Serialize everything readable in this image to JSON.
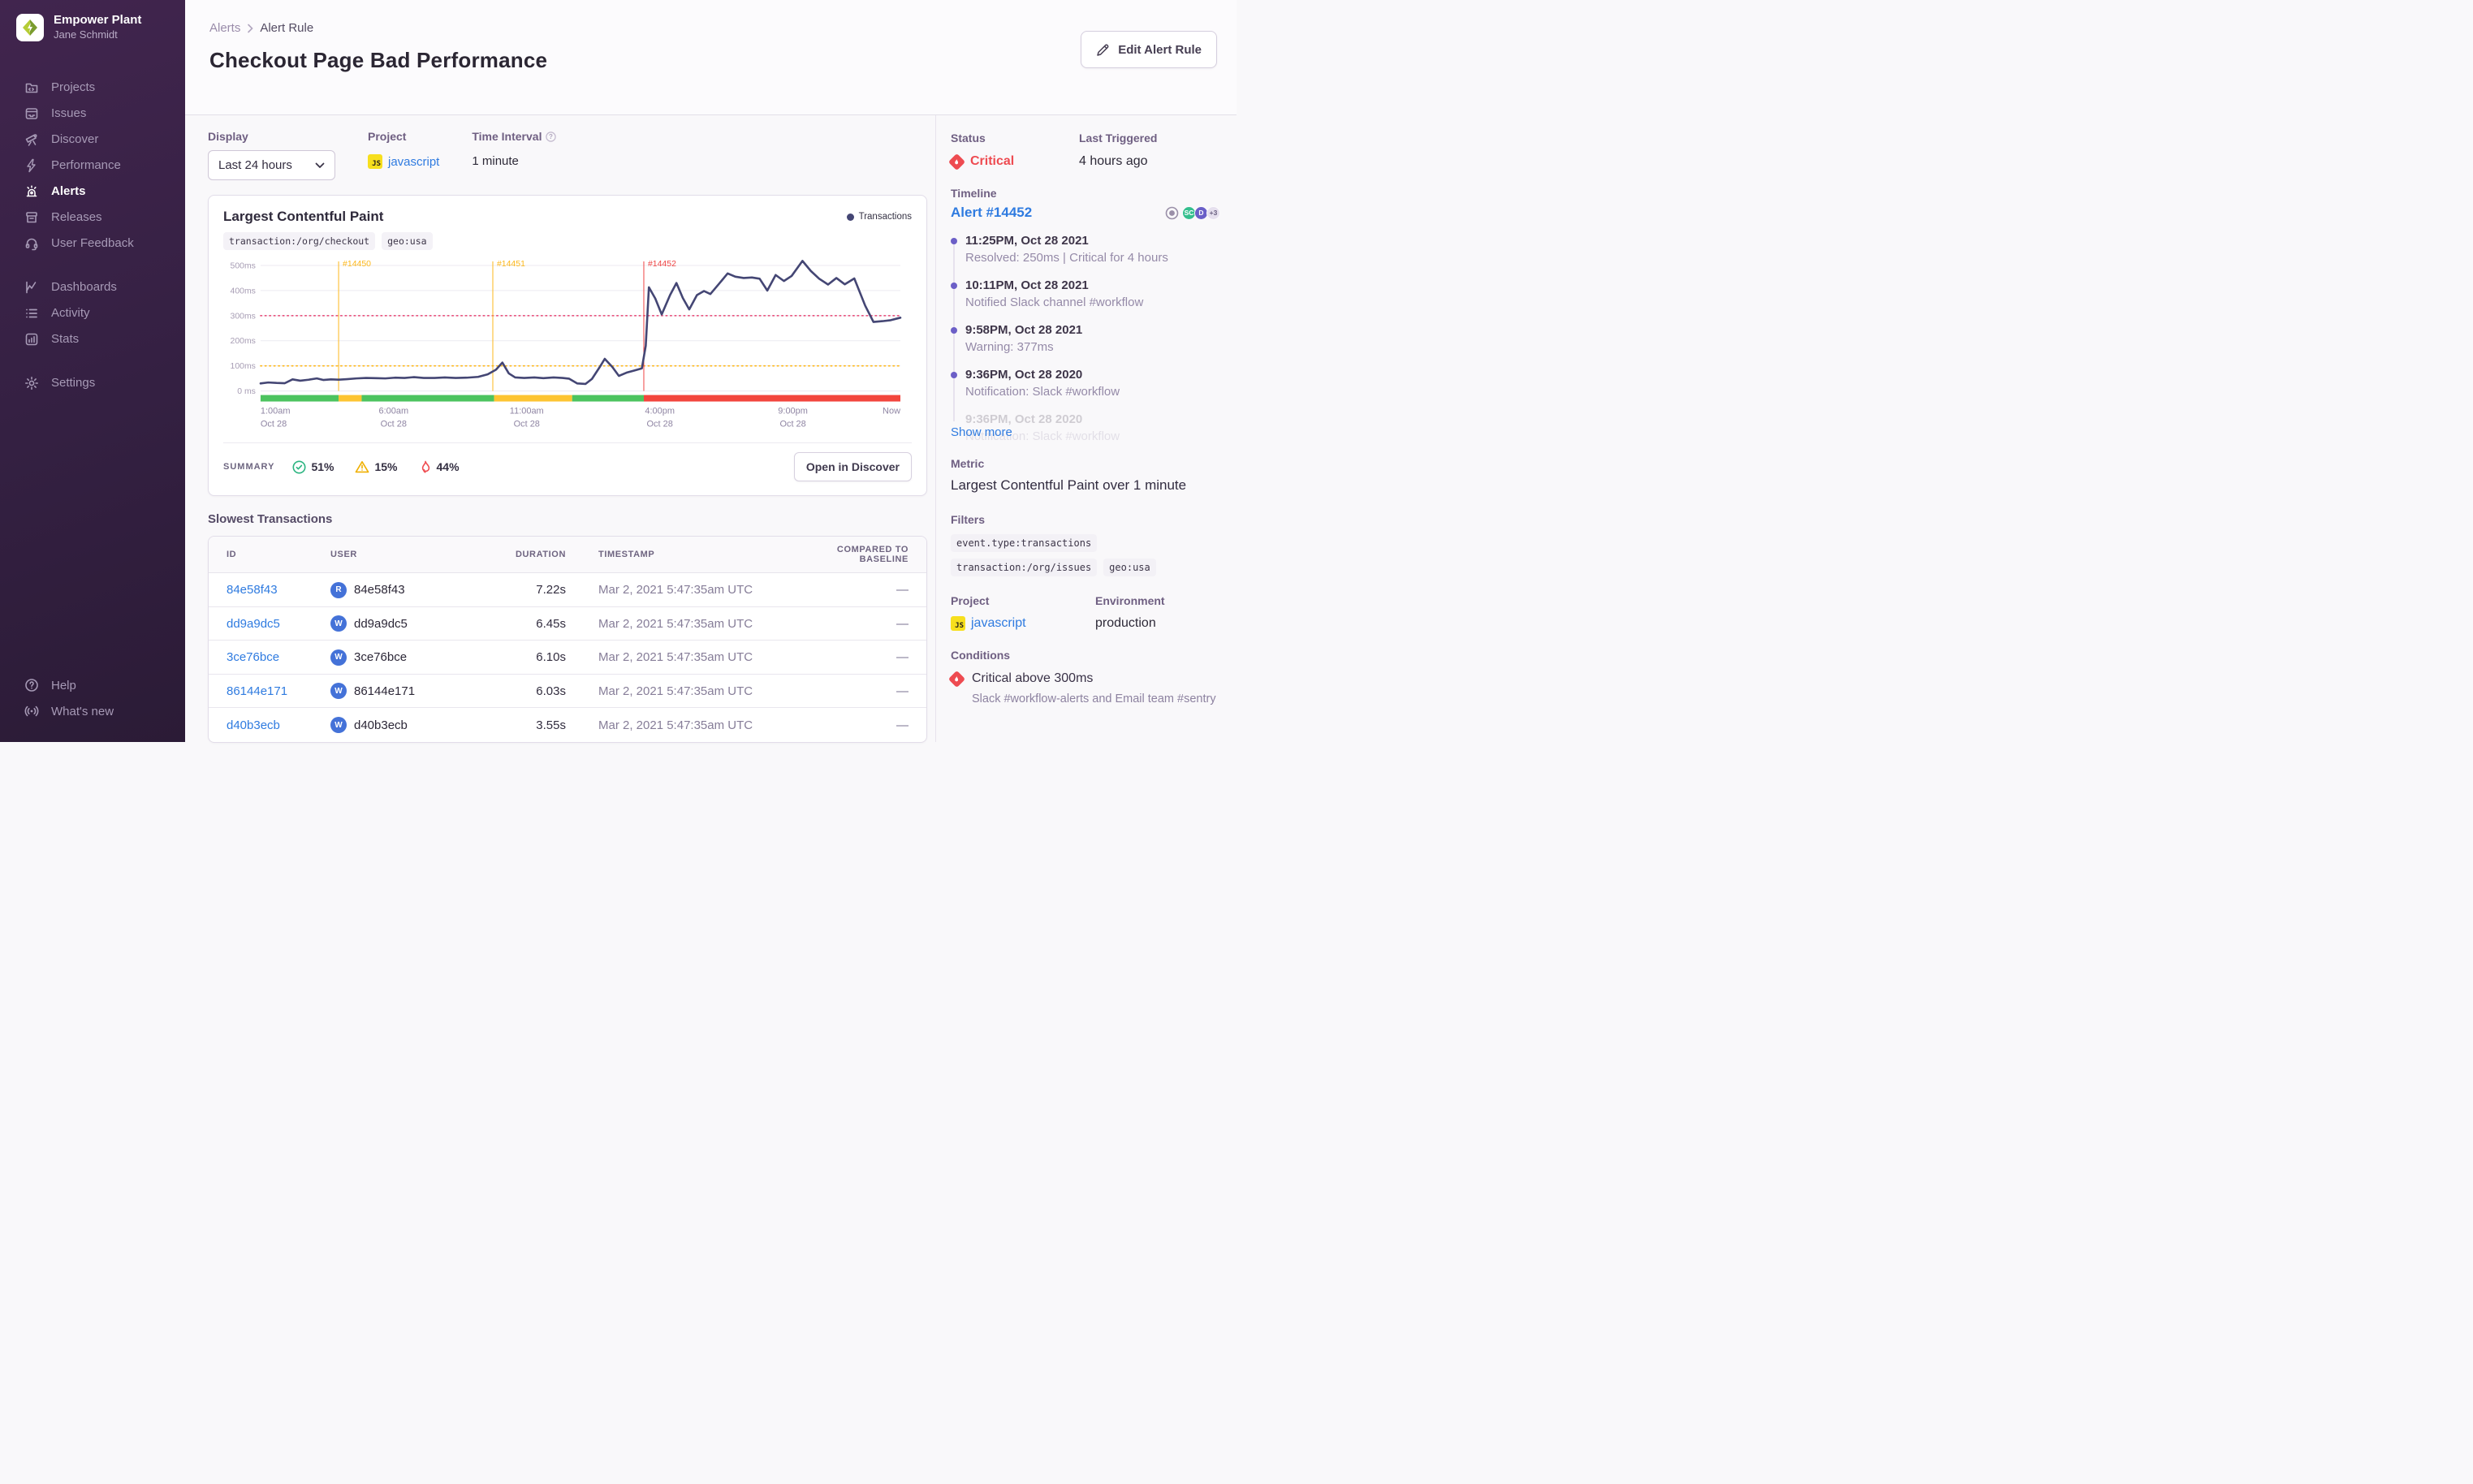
{
  "sidebar": {
    "org_name": "Empower Plant",
    "user_name": "Jane Schmidt",
    "nav_main": [
      {
        "label": "Projects"
      },
      {
        "label": "Issues"
      },
      {
        "label": "Discover"
      },
      {
        "label": "Performance"
      },
      {
        "label": "Alerts"
      },
      {
        "label": "Releases"
      },
      {
        "label": "User Feedback"
      }
    ],
    "nav_secondary": [
      {
        "label": "Dashboards"
      },
      {
        "label": "Activity"
      },
      {
        "label": "Stats"
      }
    ],
    "nav_settings": [
      {
        "label": "Settings"
      }
    ],
    "nav_bottom": [
      {
        "label": "Help"
      },
      {
        "label": "What's new"
      }
    ]
  },
  "header": {
    "breadcrumb_root": "Alerts",
    "breadcrumb_current": "Alert Rule",
    "title": "Checkout Page Bad Performance",
    "edit_button": "Edit Alert Rule"
  },
  "controls": {
    "display_label": "Display",
    "display_value": "Last 24 hours",
    "project_label": "Project",
    "project_value": "javascript",
    "interval_label": "Time Interval",
    "interval_value": "1 minute"
  },
  "status_panel": {
    "status_label": "Status",
    "status_value": "Critical",
    "last_triggered_label": "Last Triggered",
    "last_triggered_value": "4 hours ago"
  },
  "chart": {
    "title": "Largest Contentful Paint",
    "tags": [
      {
        "text": "transaction:/org/checkout"
      },
      {
        "text": "geo:usa"
      }
    ],
    "legend": "Transactions",
    "summary_label": "SUMMARY",
    "summary": [
      {
        "icon": "check",
        "value": "51%"
      },
      {
        "icon": "warning",
        "value": "15%"
      },
      {
        "icon": "fire",
        "value": "44%"
      }
    ],
    "open_button": "Open in Discover"
  },
  "chart_data": {
    "type": "line",
    "title": "Largest Contentful Paint",
    "unit": "ms",
    "ylim": [
      0,
      540
    ],
    "grid": true,
    "legend_position": "top-right",
    "y_ticks": [
      {
        "value": 0,
        "label": "0 ms"
      },
      {
        "value": 100,
        "label": "100ms"
      },
      {
        "value": 200,
        "label": "200ms"
      },
      {
        "value": 300,
        "label": "300ms"
      },
      {
        "value": 400,
        "label": "400ms"
      },
      {
        "value": 500,
        "label": "500ms"
      }
    ],
    "x_ticks": [
      {
        "pos": 0.0,
        "label": "1:00am",
        "sublabel": "Oct 28"
      },
      {
        "pos": 0.208,
        "label": "6:00am",
        "sublabel": "Oct 28"
      },
      {
        "pos": 0.416,
        "label": "11:00am",
        "sublabel": "Oct 28"
      },
      {
        "pos": 0.624,
        "label": "4:00pm",
        "sublabel": "Oct 28"
      },
      {
        "pos": 0.832,
        "label": "9:00pm",
        "sublabel": "Oct 28"
      },
      {
        "pos": 1.0,
        "label": "Now",
        "sublabel": ""
      }
    ],
    "thresholds": [
      {
        "name": "critical",
        "value": 300,
        "color": "#e8537d"
      },
      {
        "name": "warning",
        "value": 100,
        "color": "#fdb81b"
      }
    ],
    "incidents": [
      {
        "id": "#14450",
        "pos": 0.122,
        "color": "#fdb81b"
      },
      {
        "id": "#14451",
        "pos": 0.363,
        "color": "#fdb81b"
      },
      {
        "id": "#14452",
        "pos": 0.599,
        "color": "#ef4444"
      }
    ],
    "series": [
      {
        "name": "Transactions",
        "color": "#444674",
        "points": [
          [
            0.0,
            30
          ],
          [
            0.012,
            34
          ],
          [
            0.025,
            32
          ],
          [
            0.038,
            31
          ],
          [
            0.05,
            46
          ],
          [
            0.062,
            41
          ],
          [
            0.075,
            45
          ],
          [
            0.088,
            50
          ],
          [
            0.098,
            44
          ],
          [
            0.11,
            46
          ],
          [
            0.122,
            45
          ],
          [
            0.135,
            47
          ],
          [
            0.15,
            50
          ],
          [
            0.165,
            52
          ],
          [
            0.18,
            51
          ],
          [
            0.195,
            50
          ],
          [
            0.21,
            53
          ],
          [
            0.225,
            52
          ],
          [
            0.24,
            55
          ],
          [
            0.255,
            52
          ],
          [
            0.272,
            52
          ],
          [
            0.288,
            54
          ],
          [
            0.305,
            52
          ],
          [
            0.322,
            53
          ],
          [
            0.34,
            56
          ],
          [
            0.355,
            66
          ],
          [
            0.368,
            85
          ],
          [
            0.378,
            113
          ],
          [
            0.388,
            70
          ],
          [
            0.398,
            54
          ],
          [
            0.412,
            52
          ],
          [
            0.428,
            54
          ],
          [
            0.442,
            51
          ],
          [
            0.458,
            54
          ],
          [
            0.472,
            52
          ],
          [
            0.482,
            49
          ],
          [
            0.495,
            30
          ],
          [
            0.508,
            28
          ],
          [
            0.518,
            48
          ],
          [
            0.53,
            95
          ],
          [
            0.538,
            128
          ],
          [
            0.55,
            95
          ],
          [
            0.56,
            60
          ],
          [
            0.572,
            73
          ],
          [
            0.585,
            82
          ],
          [
            0.596,
            90
          ],
          [
            0.602,
            180
          ],
          [
            0.607,
            413
          ],
          [
            0.617,
            368
          ],
          [
            0.627,
            305
          ],
          [
            0.64,
            382
          ],
          [
            0.65,
            430
          ],
          [
            0.66,
            370
          ],
          [
            0.67,
            325
          ],
          [
            0.682,
            382
          ],
          [
            0.693,
            398
          ],
          [
            0.703,
            386
          ],
          [
            0.717,
            428
          ],
          [
            0.73,
            468
          ],
          [
            0.742,
            455
          ],
          [
            0.755,
            450
          ],
          [
            0.768,
            452
          ],
          [
            0.78,
            447
          ],
          [
            0.792,
            400
          ],
          [
            0.805,
            462
          ],
          [
            0.818,
            438
          ],
          [
            0.83,
            458
          ],
          [
            0.847,
            518
          ],
          [
            0.86,
            478
          ],
          [
            0.873,
            447
          ],
          [
            0.887,
            424
          ],
          [
            0.9,
            450
          ],
          [
            0.913,
            425
          ],
          [
            0.928,
            448
          ],
          [
            0.945,
            340
          ],
          [
            0.958,
            275
          ],
          [
            0.972,
            278
          ],
          [
            0.985,
            282
          ],
          [
            1.0,
            292
          ]
        ]
      }
    ],
    "status_segments": [
      {
        "from": 0.0,
        "to": 0.122,
        "color": "#4cc35f"
      },
      {
        "from": 0.122,
        "to": 0.158,
        "color": "#fdc432"
      },
      {
        "from": 0.158,
        "to": 0.365,
        "color": "#4cc35f"
      },
      {
        "from": 0.365,
        "to": 0.487,
        "color": "#fdc432"
      },
      {
        "from": 0.487,
        "to": 0.599,
        "color": "#4cc35f"
      },
      {
        "from": 0.599,
        "to": 1.0,
        "color": "#f2453d"
      }
    ]
  },
  "table": {
    "heading": "Slowest Transactions",
    "columns": [
      "ID",
      "USER",
      "DURATION",
      "TIMESTAMP",
      "COMPARED TO BASELINE"
    ],
    "rows": [
      {
        "id": "84e58f43",
        "avatar": "R",
        "user": "84e58f43",
        "duration": "7.22s",
        "timestamp": "Mar 2, 2021 5:47:35am UTC",
        "baseline": "—"
      },
      {
        "id": "dd9a9dc5",
        "avatar": "W",
        "user": "dd9a9dc5",
        "duration": "6.45s",
        "timestamp": "Mar 2, 2021 5:47:35am UTC",
        "baseline": "—"
      },
      {
        "id": "3ce76bce",
        "avatar": "W",
        "user": "3ce76bce",
        "duration": "6.10s",
        "timestamp": "Mar 2, 2021 5:47:35am UTC",
        "baseline": "—"
      },
      {
        "id": "86144e171",
        "avatar": "W",
        "user": "86144e171",
        "duration": "6.03s",
        "timestamp": "Mar 2, 2021 5:47:35am UTC",
        "baseline": "—"
      },
      {
        "id": "d40b3ecb",
        "avatar": "W",
        "user": "d40b3ecb",
        "duration": "3.55s",
        "timestamp": "Mar 2, 2021 5:47:35am UTC",
        "baseline": "—"
      }
    ]
  },
  "timeline": {
    "label": "Timeline",
    "alert_link": "Alert #14452",
    "avatars": [
      {
        "initials": "SC",
        "color": "#35bf8e"
      },
      {
        "initials": "D",
        "color": "#6a5fc8"
      },
      {
        "initials": "+3",
        "color": "#e6e0ee"
      }
    ],
    "entries": [
      {
        "time": "11:25PM, Oct 28 2021",
        "desc": "Resolved: 250ms | Critical for 4 hours"
      },
      {
        "time": "10:11PM, Oct 28 2021",
        "desc": "Notified Slack channel #workflow"
      },
      {
        "time": "9:58PM, Oct 28 2021",
        "desc": "Warning: 377ms"
      },
      {
        "time": "9:36PM, Oct 28 2020",
        "desc": "Notification: Slack #workflow"
      },
      {
        "time": "9:36PM, Oct 28 2020",
        "desc": "Notification: Slack #workflow"
      }
    ],
    "show_more": "Show more"
  },
  "details": {
    "metric_label": "Metric",
    "metric_value": "Largest Contentful Paint over 1 minute",
    "filters_label": "Filters",
    "filter_tags": [
      {
        "text": "event.type:transactions"
      },
      {
        "text": "transaction:/org/issues"
      },
      {
        "text": "geo:usa"
      }
    ],
    "project_label": "Project",
    "project_value": "javascript",
    "environment_label": "Environment",
    "environment_value": "production",
    "conditions_label": "Conditions",
    "condition_title": "Critical above 300ms",
    "condition_desc": "Slack #workflow-alerts and Email team #sentry"
  },
  "colors": {
    "accent_purple": "#6C5FC7",
    "link_blue": "#2f7be0",
    "critical_red": "#ee4b51",
    "warning_yellow": "#fdb81b",
    "ok_green": "#4cc35f",
    "chart_line": "#444674"
  }
}
